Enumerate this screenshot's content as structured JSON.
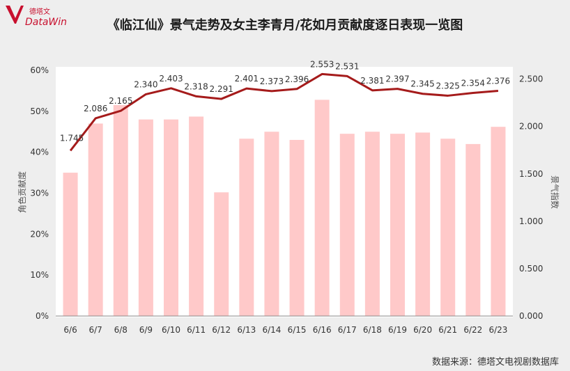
{
  "logo": {
    "cn": "德塔文",
    "en": "DataWin"
  },
  "source": "数据来源：德塔文电视剧数据库",
  "colors": {
    "bar": "#ffc9c9",
    "line": "#a51b1b",
    "plot_bg": "#ffffff"
  },
  "chart_data": {
    "type": "bar",
    "title": "《临江仙》景气走势及女主李青月/花如月贡献度逐日表现一览图",
    "categories": [
      "6/6",
      "6/7",
      "6/8",
      "6/9",
      "6/10",
      "6/11",
      "6/12",
      "6/13",
      "6/14",
      "6/15",
      "6/16",
      "6/17",
      "6/18",
      "6/19",
      "6/20",
      "6/21",
      "6/22",
      "6/23"
    ],
    "series": [
      {
        "type": "bar",
        "axis": "left",
        "values": [
          35,
          47,
          51.5,
          48,
          48,
          48.7,
          30.2,
          43.3,
          45,
          43,
          52.8,
          44.5,
          45,
          44.5,
          44.8,
          43.3,
          42,
          46.2
        ]
      },
      {
        "type": "line",
        "axis": "right",
        "values": [
          1.745,
          2.086,
          2.165,
          2.34,
          2.403,
          2.318,
          2.291,
          2.401,
          2.373,
          2.396,
          2.553,
          2.531,
          2.381,
          2.397,
          2.345,
          2.325,
          2.354,
          2.376
        ],
        "labels": [
          "1.745",
          "2.086",
          "2.165",
          "2.340",
          "2.403",
          "2.318",
          "2.291",
          "2.401",
          "2.373",
          "2.396",
          "2.553",
          "2.531",
          "2.381",
          "2.397",
          "2.345",
          "2.325",
          "2.354",
          "2.376"
        ]
      }
    ],
    "y_left": {
      "label": "角色贡献度",
      "range": [
        0,
        60
      ],
      "ticks": [
        "0%",
        "10%",
        "20%",
        "30%",
        "40%",
        "50%",
        "60%"
      ],
      "tick_values": [
        0,
        10,
        20,
        30,
        40,
        50,
        60
      ]
    },
    "y_right": {
      "label": "景气指数",
      "range": [
        0,
        2.6
      ],
      "ticks": [
        "0.000",
        "0.500",
        "1.000",
        "1.500",
        "2.000",
        "2.500"
      ],
      "tick_values": [
        0,
        0.5,
        1,
        1.5,
        2,
        2.5
      ]
    },
    "grid": false,
    "legend": "none"
  }
}
